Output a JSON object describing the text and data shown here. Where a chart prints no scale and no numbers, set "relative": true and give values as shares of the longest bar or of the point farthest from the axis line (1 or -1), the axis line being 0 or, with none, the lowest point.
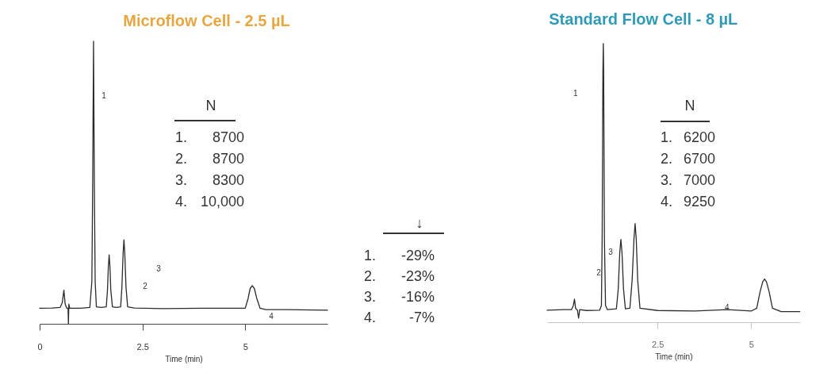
{
  "chart_data": [
    {
      "type": "line",
      "title": "Microflow Cell - 2.5 µL",
      "xlabel": "Time (min)",
      "relative": true,
      "xlim": [
        0,
        7
      ],
      "xticks": [
        0,
        2.5,
        5
      ],
      "x": [
        0,
        0.3,
        0.5,
        0.55,
        0.59,
        0.62,
        0.66,
        0.69,
        0.7,
        0.71,
        0.73,
        1.0,
        1.22,
        1.27,
        1.29,
        1.31,
        1.33,
        1.35,
        1.38,
        1.5,
        1.62,
        1.65,
        1.67,
        1.69,
        1.71,
        1.73,
        1.77,
        1.87,
        1.97,
        2.0,
        2.03,
        2.05,
        2.07,
        2.1,
        2.14,
        2.3,
        3.0,
        4.0,
        4.9,
        5.0,
        5.07,
        5.12,
        5.17,
        5.22,
        5.28,
        5.36,
        5.5,
        6.0,
        7.0
      ],
      "series": [
        {
          "color": "#2b2b2b",
          "values": [
            0.055,
            0.056,
            0.058,
            0.075,
            0.119,
            0.07,
            0.055,
            0.055,
            0.0,
            0.07,
            0.055,
            0.055,
            0.058,
            0.15,
            0.5,
            1.0,
            0.5,
            0.15,
            0.06,
            0.058,
            0.06,
            0.12,
            0.2,
            0.244,
            0.2,
            0.12,
            0.06,
            0.058,
            0.06,
            0.13,
            0.25,
            0.297,
            0.25,
            0.13,
            0.06,
            0.056,
            0.054,
            0.055,
            0.055,
            0.055,
            0.09,
            0.125,
            0.135,
            0.125,
            0.09,
            0.055,
            0.05,
            0.05,
            0.048
          ]
        }
      ],
      "annotations": [
        "N",
        "1. 8700",
        "2. 8700",
        "3. 8300",
        "4. 10,000",
        "1",
        "2",
        "3",
        "4"
      ]
    },
    {
      "type": "other",
      "annotations": [
        "↓",
        "1. -29%",
        "2. -23%",
        "3. -16%",
        "4. -7%"
      ]
    },
    {
      "type": "line",
      "title": "Standard Flow Cell - 8 µL",
      "xlabel": "Time (min)",
      "relative": true,
      "xlim": [
        -0.45,
        6.3
      ],
      "xticks": [
        2.5,
        5
      ],
      "x": [
        -0.45,
        0.0,
        0.2,
        0.25,
        0.28,
        0.31,
        0.36,
        0.39,
        0.42,
        0.6,
        0.95,
        1.0,
        1.02,
        1.04,
        1.05,
        1.06,
        1.08,
        1.11,
        1.16,
        1.4,
        1.45,
        1.49,
        1.52,
        1.55,
        1.59,
        1.64,
        1.76,
        1.82,
        1.87,
        1.9,
        1.93,
        1.97,
        2.03,
        2.5,
        3.5,
        4.36,
        5.0,
        5.15,
        5.24,
        5.31,
        5.36,
        5.41,
        5.48,
        5.57,
        5.8,
        6.3
      ],
      "series": [
        {
          "color": "#2b2b2b",
          "values": [
            0.043,
            0.045,
            0.045,
            0.06,
            0.083,
            0.05,
            0.043,
            0.015,
            0.045,
            0.042,
            0.043,
            0.06,
            0.3,
            0.9,
            1.0,
            0.9,
            0.3,
            0.06,
            0.045,
            0.048,
            0.12,
            0.25,
            0.297,
            0.25,
            0.12,
            0.048,
            0.05,
            0.15,
            0.3,
            0.354,
            0.3,
            0.15,
            0.05,
            0.042,
            0.04,
            0.045,
            0.04,
            0.05,
            0.11,
            0.145,
            0.155,
            0.145,
            0.11,
            0.05,
            0.038,
            0.038
          ]
        }
      ],
      "annotations": [
        "N",
        "1. 6200",
        "2. 6700",
        "3. 7000",
        "4. 9250",
        "1",
        "2",
        "3",
        "4"
      ]
    }
  ]
}
